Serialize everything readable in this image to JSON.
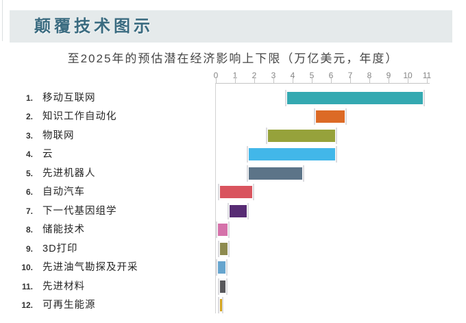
{
  "page": {
    "title": "颠覆技术图示",
    "subtitle": "至2025年的预估潜在经济影响上下限（万亿美元，年度）"
  },
  "chart_data": {
    "type": "bar",
    "variant": "horizontal-range-bar",
    "title": "颠覆技术图示",
    "subtitle": "至2025年的预估潜在经济影响上下限（万亿美元，年度）",
    "xlabel": "万亿美元，年度",
    "xlim": [
      0,
      11
    ],
    "x_ticks": [
      0,
      1,
      2,
      3,
      4,
      5,
      6,
      7,
      8,
      9,
      10,
      11
    ],
    "grid": false,
    "legend": "none",
    "items": [
      {
        "rank": "1.",
        "label": "移动互联网",
        "low": 3.7,
        "high": 10.8,
        "color": "#34A9B1"
      },
      {
        "rank": "2.",
        "label": "知识工作自动化",
        "low": 5.2,
        "high": 6.7,
        "color": "#DC6A26"
      },
      {
        "rank": "3.",
        "label": "物联网",
        "low": 2.7,
        "high": 6.2,
        "color": "#96A23B"
      },
      {
        "rank": "4.",
        "label": "云",
        "low": 1.7,
        "high": 6.2,
        "color": "#42B7E9"
      },
      {
        "rank": "5.",
        "label": "先进机器人",
        "low": 1.7,
        "high": 4.5,
        "color": "#5C7488"
      },
      {
        "rank": "6.",
        "label": "自动汽车",
        "low": 0.2,
        "high": 1.9,
        "color": "#D9545E"
      },
      {
        "rank": "7.",
        "label": "下一代基因组学",
        "low": 0.7,
        "high": 1.6,
        "color": "#582C74"
      },
      {
        "rank": "8.",
        "label": "储能技术",
        "low": 0.1,
        "high": 0.6,
        "color": "#D572AA"
      },
      {
        "rank": "9.",
        "label": "3D打印",
        "low": 0.2,
        "high": 0.6,
        "color": "#8E8B50"
      },
      {
        "rank": "10.",
        "label": "先进油气勘探及开采",
        "low": 0.1,
        "high": 0.5,
        "color": "#67A5CE"
      },
      {
        "rank": "11.",
        "label": "先进材料",
        "low": 0.2,
        "high": 0.5,
        "color": "#58585C"
      },
      {
        "rank": "12.",
        "label": "可再生能源",
        "low": 0.2,
        "high": 0.3,
        "color": "#D5A620"
      }
    ]
  },
  "colors": {
    "header_band": "#E5EAEB",
    "title_text": "#3A6B80",
    "subtitle_text": "#454545",
    "axis_line": "#C5C5C5",
    "tick_label": "#858585",
    "row_label": "#262626",
    "bar_end_cap": "#DBDBDF",
    "background": "#FFFFFF"
  }
}
